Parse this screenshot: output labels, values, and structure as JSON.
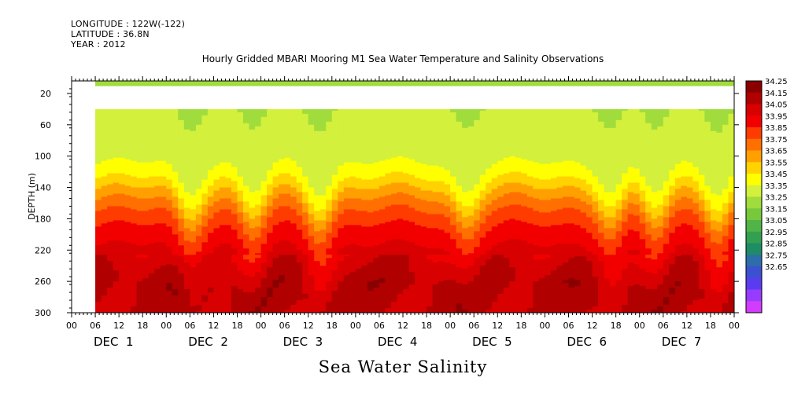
{
  "header": {
    "longitude": "LONGITUDE : 122W(-122)",
    "latitude": "LATITUDE : 36.8N",
    "year": "YEAR : 2012"
  },
  "chart_data": {
    "type": "heatmap",
    "title": "Hourly Gridded MBARI Mooring M1 Sea Water Temperature and Salinity Observations",
    "xlabel": "Sea Water Salinity",
    "ylabel": "DEPTH (m)",
    "ylim": [
      300,
      4
    ],
    "y_ticks": [
      20,
      60,
      100,
      140,
      180,
      220,
      260,
      300
    ],
    "x_hour_ticks": [
      "00",
      "06",
      "12",
      "18",
      "00",
      "06",
      "12",
      "18",
      "00",
      "06",
      "12",
      "18",
      "00",
      "06",
      "12",
      "18",
      "00",
      "06",
      "12",
      "18",
      "00",
      "06",
      "12",
      "18",
      "00",
      "06",
      "12",
      "18",
      "00"
    ],
    "x_day_labels": [
      "DEC  1",
      "DEC  2",
      "DEC  3",
      "DEC  4",
      "DEC  5",
      "DEC  6",
      "DEC  7"
    ],
    "data_start_hour": 6,
    "gap_depth_range": [
      10,
      40
    ],
    "colorbar": {
      "levels": [
        "34.25",
        "34.15",
        "34.05",
        "33.95",
        "33.85",
        "33.75",
        "33.65",
        "33.55",
        "33.45",
        "33.35",
        "33.25",
        "33.15",
        "33.05",
        "32.95",
        "32.85",
        "32.75",
        "32.65"
      ],
      "colors": [
        "#8a0000",
        "#b00000",
        "#d80000",
        "#f20000",
        "#ff3c00",
        "#ff7000",
        "#ffa000",
        "#ffd200",
        "#ffff00",
        "#d2f03c",
        "#a0dc3c",
        "#78c83c",
        "#50b446",
        "#32a050",
        "#1e8c64",
        "#2d6eaa",
        "#3c50d2",
        "#5a3cf0",
        "#963cff",
        "#d23cff"
      ]
    },
    "profile_levels": [
      {
        "depth": 12,
        "value": 33.3
      },
      {
        "depth": 40,
        "value": 33.4
      },
      {
        "depth": 80,
        "value": 33.4
      },
      {
        "depth": 100,
        "value": 33.42
      },
      {
        "depth": 120,
        "value": 33.5
      },
      {
        "depth": 140,
        "value": 33.65
      },
      {
        "depth": 160,
        "value": 33.8
      },
      {
        "depth": 180,
        "value": 33.92
      },
      {
        "depth": 200,
        "value": 34.0
      },
      {
        "depth": 220,
        "value": 34.08
      },
      {
        "depth": 240,
        "value": 34.14
      },
      {
        "depth": 260,
        "value": 34.2
      },
      {
        "depth": 300,
        "value": 34.16
      }
    ],
    "isopycnal_trough_hours": [
      30,
      46,
      63,
      100,
      137,
      148,
      164,
      178
    ]
  }
}
